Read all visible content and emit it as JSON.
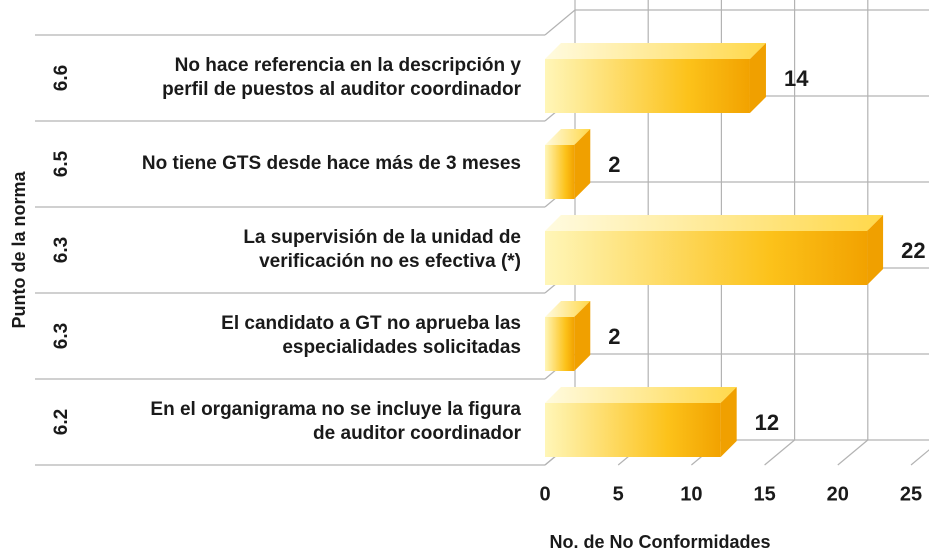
{
  "chart_data": {
    "type": "bar3d",
    "orientation": "horizontal",
    "y_label": "Punto de la norma",
    "x_label": "No. de No Conformidades",
    "categories": [
      "6.6",
      "6.5",
      "6.3",
      "6.3",
      "6.2"
    ],
    "descriptions": [
      [
        "No hace referencia en la descripción y",
        "perfil de puestos al auditor coordinador"
      ],
      [
        "No tiene GTS desde hace más de 3 meses"
      ],
      [
        "La supervisión de la unidad de",
        "verificación no es efectiva (*)"
      ],
      [
        "El candidato a GT no aprueba las",
        "especialidades solicitadas"
      ],
      [
        "En el organigrama no se incluye la figura",
        "de auditor coordinador"
      ]
    ],
    "values": [
      14,
      2,
      22,
      2,
      12
    ],
    "color": "#f7b500",
    "xlim": [
      0,
      25
    ],
    "xticks": [
      0,
      5,
      10,
      15,
      20,
      25
    ],
    "grid": true
  }
}
